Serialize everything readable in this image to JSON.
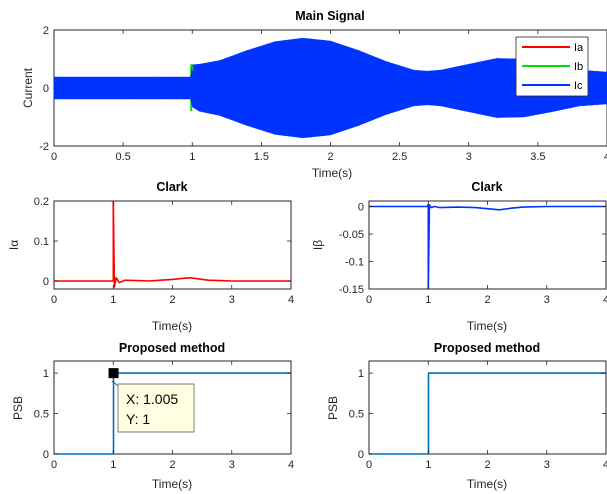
{
  "colors": {
    "ia": "#ff0000",
    "ib": "#00e000",
    "ic": "#0033ff",
    "step": "#0072bd",
    "axis": "#262626",
    "tip_bg": "#ffffe1"
  },
  "chart_data": [
    {
      "id": "main",
      "type": "line",
      "title": "Main Signal",
      "xlabel": "Time(s)",
      "ylabel": "Current",
      "xlim": [
        0,
        4
      ],
      "ylim": [
        -2,
        2
      ],
      "xticks": [
        0,
        0.5,
        1,
        1.5,
        2,
        2.5,
        3,
        3.5,
        4
      ],
      "xtick_labels": [
        "0",
        "0.5",
        "1",
        "1.5",
        "2",
        "2.5",
        "3",
        "3.5",
        "4"
      ],
      "yticks": [
        -2,
        0,
        2
      ],
      "ytick_labels": [
        "-2",
        "0",
        "2"
      ],
      "legend_position": "top-right",
      "series": [
        {
          "name": "Ia",
          "color": "#ff0000"
        },
        {
          "name": "Ib",
          "color": "#00e000"
        },
        {
          "name": "Ic",
          "color": "#0033ff"
        }
      ],
      "envelope": {
        "x": [
          0,
          0.99,
          1.0,
          1.05,
          1.2,
          1.4,
          1.6,
          1.8,
          2.0,
          2.2,
          2.4,
          2.6,
          2.7,
          2.8,
          3.0,
          3.2,
          3.4,
          3.6,
          3.8,
          4.0
        ],
        "upper": [
          0.38,
          0.38,
          0.8,
          0.82,
          0.95,
          1.3,
          1.6,
          1.72,
          1.62,
          1.3,
          0.92,
          0.62,
          0.58,
          0.62,
          0.82,
          1.02,
          1.0,
          0.82,
          0.62,
          0.55
        ],
        "lower": [
          -0.38,
          -0.38,
          -0.65,
          -0.8,
          -0.95,
          -1.3,
          -1.6,
          -1.72,
          -1.62,
          -1.3,
          -0.92,
          -0.62,
          -0.58,
          -0.62,
          -0.82,
          -1.02,
          -1.0,
          -0.82,
          -0.62,
          -0.55
        ]
      }
    },
    {
      "id": "clark_alpha",
      "type": "line",
      "title": "Clark",
      "xlabel": "Time(s)",
      "ylabel": "Iα",
      "xlim": [
        0,
        4
      ],
      "ylim": [
        -0.02,
        0.2
      ],
      "xticks": [
        0,
        1,
        2,
        3,
        4
      ],
      "xtick_labels": [
        "0",
        "1",
        "2",
        "3",
        "4"
      ],
      "yticks": [
        0,
        0.1,
        0.2
      ],
      "ytick_labels": [
        "0",
        "0.1",
        "0.2"
      ],
      "series": [
        {
          "color": "#ff0000",
          "x": [
            0,
            0.98,
            1.0,
            1.0,
            1.02,
            1.05,
            1.1,
            1.2,
            1.4,
            1.6,
            1.8,
            2.0,
            2.2,
            2.3,
            2.4,
            2.6,
            2.8,
            3.0,
            3.5,
            4.0
          ],
          "y": [
            0,
            0,
            0,
            0.2,
            -0.015,
            0.008,
            -0.004,
            0.002,
            0.001,
            0.0,
            0.002,
            0.004,
            0.007,
            0.008,
            0.006,
            0.002,
            0.001,
            0,
            0,
            0
          ]
        }
      ]
    },
    {
      "id": "clark_beta",
      "type": "line",
      "title": "Clark",
      "xlabel": "Time(s)",
      "ylabel": "Iβ",
      "xlim": [
        0,
        4
      ],
      "ylim": [
        -0.15,
        0.01
      ],
      "xticks": [
        0,
        1,
        2,
        3,
        4
      ],
      "xtick_labels": [
        "0",
        "1",
        "2",
        "3",
        "4"
      ],
      "yticks": [
        -0.15,
        -0.1,
        -0.05,
        0
      ],
      "ytick_labels": [
        "-0.15",
        "-0.1",
        "-0.05",
        "0"
      ],
      "series": [
        {
          "color": "#0033ff",
          "x": [
            0,
            0.97,
            0.99,
            1.0,
            1.0,
            1.02,
            1.05,
            1.1,
            1.2,
            1.5,
            1.8,
            2.0,
            2.2,
            2.4,
            2.6,
            3.0,
            3.5,
            4.0
          ],
          "y": [
            0,
            0,
            0,
            0.004,
            -0.15,
            0.003,
            -0.002,
            0.0,
            -0.002,
            -0.001,
            -0.002,
            -0.004,
            -0.006,
            -0.003,
            -0.001,
            0,
            0,
            0
          ]
        }
      ]
    },
    {
      "id": "psb_left",
      "type": "line",
      "title": "Proposed method",
      "xlabel": "Time(s)",
      "ylabel": "PSB",
      "xlim": [
        0,
        4
      ],
      "ylim": [
        0,
        1.15
      ],
      "xticks": [
        0,
        1,
        2,
        3,
        4
      ],
      "xtick_labels": [
        "0",
        "1",
        "2",
        "3",
        "4"
      ],
      "yticks": [
        0,
        0.5,
        1
      ],
      "ytick_labels": [
        "0",
        "0.5",
        "1"
      ],
      "series": [
        {
          "color": "#0072bd",
          "x": [
            0,
            1.005,
            1.005,
            4
          ],
          "y": [
            0,
            0,
            1,
            1
          ]
        }
      ],
      "datatip": {
        "x": 1.005,
        "y": 1,
        "x_text": "X: 1.005",
        "y_text": "Y: 1"
      }
    },
    {
      "id": "psb_right",
      "type": "line",
      "title": "Proposed method",
      "xlabel": "Time(s)",
      "ylabel": "PSB",
      "xlim": [
        0,
        4
      ],
      "ylim": [
        0,
        1.15
      ],
      "xticks": [
        0,
        1,
        2,
        3,
        4
      ],
      "xtick_labels": [
        "0",
        "1",
        "2",
        "3",
        "4"
      ],
      "yticks": [
        0,
        0.5,
        1
      ],
      "ytick_labels": [
        "0",
        "0.5",
        "1"
      ],
      "series": [
        {
          "color": "#0072bd",
          "x": [
            0,
            1.005,
            1.005,
            4
          ],
          "y": [
            0,
            0,
            1,
            1
          ]
        }
      ]
    }
  ]
}
